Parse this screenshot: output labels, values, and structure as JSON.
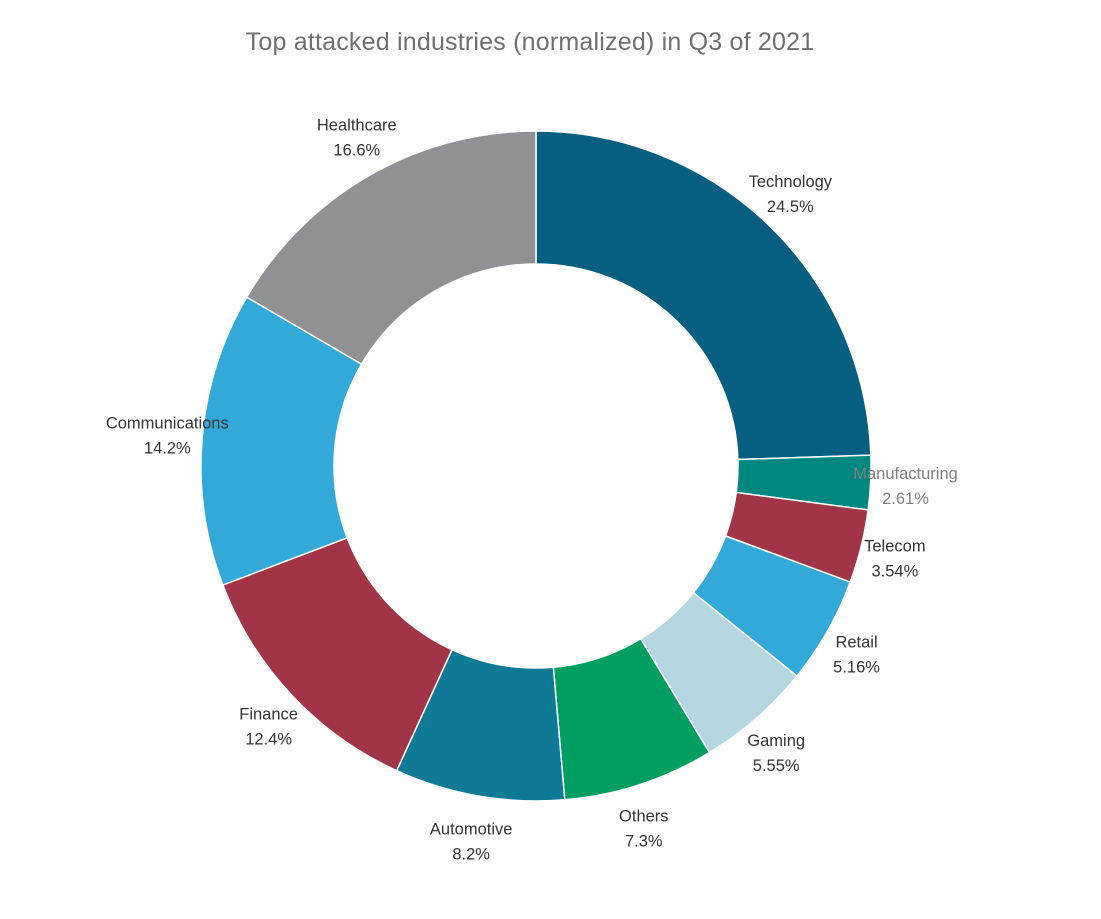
{
  "chart_data": {
    "type": "pie",
    "title": "Top attacked industries (normalized) in Q3 of 2021",
    "donut": true,
    "slices": [
      {
        "label": "Technology",
        "value": 24.5,
        "value_label": "24.5%",
        "color": "#065f80"
      },
      {
        "label": "Manufacturing",
        "value": 2.61,
        "value_label": "2.61%",
        "color": "#008780"
      },
      {
        "label": "Telecom",
        "value": 3.54,
        "value_label": "3.54%",
        "color": "#a13447"
      },
      {
        "label": "Retail",
        "value": 5.16,
        "value_label": "5.16%",
        "color": "#33a9d9"
      },
      {
        "label": "Gaming",
        "value": 5.55,
        "value_label": "5.55%",
        "color": "#b4d6e0"
      },
      {
        "label": "Others",
        "value": 7.3,
        "value_label": "7.3%",
        "color": "#009e60"
      },
      {
        "label": "Automotive",
        "value": 8.2,
        "value_label": "8.2%",
        "color": "#0e7a96"
      },
      {
        "label": "Finance",
        "value": 12.4,
        "value_label": "12.4%",
        "color": "#a13447"
      },
      {
        "label": "Communications",
        "value": 14.2,
        "value_label": "14.2%",
        "color": "#33a9d9"
      },
      {
        "label": "Healthcare",
        "value": 16.6,
        "value_label": "16.6%",
        "color": "#909194"
      }
    ],
    "label_color": "#333333",
    "muted_label_color": "#7f7f7f",
    "muted_labels": [
      "Manufacturing"
    ]
  }
}
